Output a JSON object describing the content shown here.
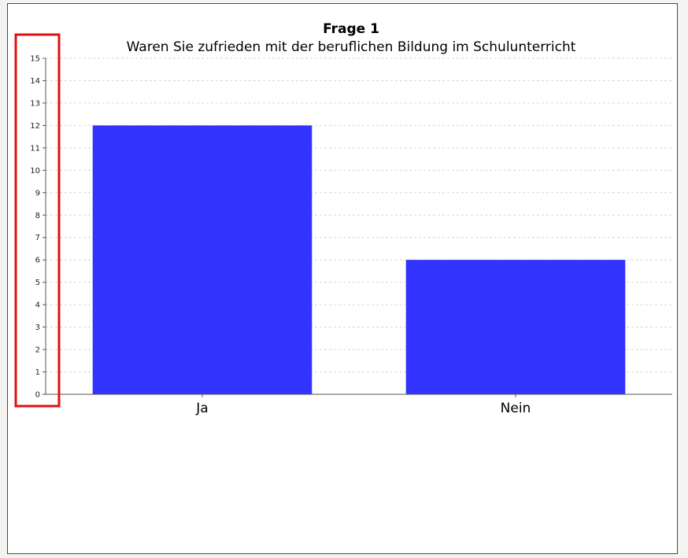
{
  "chart_data": {
    "type": "bar",
    "title": "Frage 1",
    "subtitle": "Waren Sie zufrieden mit der beruflichen Bildung im Schulunterricht",
    "categories": [
      "Ja",
      "Nein"
    ],
    "values": [
      12,
      6
    ],
    "ylim": [
      0,
      15
    ],
    "yticks": [
      "0",
      "1",
      "2",
      "3",
      "4",
      "5",
      "6",
      "7",
      "8",
      "9",
      "10",
      "11",
      "12",
      "13",
      "14",
      "15"
    ],
    "grid": true,
    "bar_color": "#3333ff",
    "highlight_color": "#e01010"
  }
}
